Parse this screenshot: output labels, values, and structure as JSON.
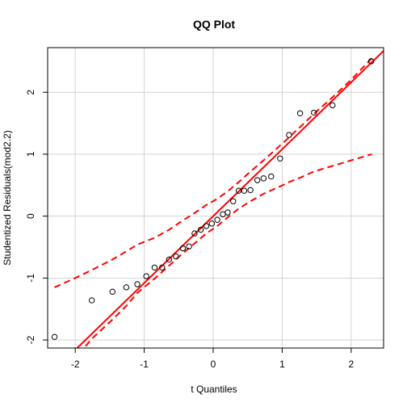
{
  "chart_data": {
    "type": "scatter",
    "title": "QQ Plot",
    "xlabel": "t Quantiles",
    "ylabel": "Studentized Residuals(mod2.2)",
    "xlim": [
      -2.4,
      2.47
    ],
    "ylim": [
      -2.13,
      2.72
    ],
    "xticks": [
      -2,
      -1,
      0,
      1,
      2
    ],
    "yticks": [
      -2,
      -1,
      0,
      1,
      2
    ],
    "grid": true,
    "points": [
      {
        "x": -2.3,
        "y": -1.95
      },
      {
        "x": -1.76,
        "y": -1.36
      },
      {
        "x": -1.46,
        "y": -1.22
      },
      {
        "x": -1.26,
        "y": -1.15
      },
      {
        "x": -1.1,
        "y": -1.1
      },
      {
        "x": -0.97,
        "y": -0.97
      },
      {
        "x": -0.85,
        "y": -0.83
      },
      {
        "x": -0.74,
        "y": -0.83
      },
      {
        "x": -0.64,
        "y": -0.7
      },
      {
        "x": -0.54,
        "y": -0.65
      },
      {
        "x": -0.44,
        "y": -0.52
      },
      {
        "x": -0.35,
        "y": -0.49
      },
      {
        "x": -0.27,
        "y": -0.28
      },
      {
        "x": -0.18,
        "y": -0.22
      },
      {
        "x": -0.1,
        "y": -0.16
      },
      {
        "x": -0.02,
        "y": -0.12
      },
      {
        "x": 0.06,
        "y": -0.06
      },
      {
        "x": 0.14,
        "y": 0.03
      },
      {
        "x": 0.21,
        "y": 0.06
      },
      {
        "x": 0.29,
        "y": 0.24
      },
      {
        "x": 0.37,
        "y": 0.41
      },
      {
        "x": 0.45,
        "y": 0.41
      },
      {
        "x": 0.54,
        "y": 0.42
      },
      {
        "x": 0.64,
        "y": 0.58
      },
      {
        "x": 0.73,
        "y": 0.61
      },
      {
        "x": 0.84,
        "y": 0.64
      },
      {
        "x": 0.97,
        "y": 0.93
      },
      {
        "x": 1.1,
        "y": 1.31
      },
      {
        "x": 1.26,
        "y": 1.66
      },
      {
        "x": 1.46,
        "y": 1.67
      },
      {
        "x": 1.73,
        "y": 1.79
      },
      {
        "x": 2.29,
        "y": 2.5
      }
    ],
    "reference_line": {
      "intercept": 0.0,
      "slope": 1.08
    },
    "envelope": {
      "x": [
        -2.3,
        -2.0,
        -1.76,
        -1.46,
        -1.26,
        -1.1,
        -0.85,
        -0.64,
        -0.44,
        -0.27,
        -0.1,
        0.06,
        0.21,
        0.37,
        0.54,
        0.73,
        0.97,
        1.1,
        1.26,
        1.46,
        1.76,
        2.0,
        2.3
      ],
      "upper": [
        -1.15,
        -1.0,
        -0.87,
        -0.7,
        -0.57,
        -0.46,
        -0.35,
        -0.22,
        -0.07,
        0.05,
        0.18,
        0.28,
        0.4,
        0.55,
        0.72,
        0.9,
        1.14,
        1.27,
        1.44,
        1.65,
        1.95,
        2.2,
        2.55
      ],
      "lower": [
        -2.55,
        -2.3,
        -1.98,
        -1.67,
        -1.45,
        -1.24,
        -1.01,
        -0.8,
        -0.6,
        -0.44,
        -0.28,
        -0.16,
        -0.02,
        0.12,
        0.24,
        0.36,
        0.48,
        0.55,
        0.62,
        0.72,
        0.82,
        0.9,
        1.0
      ]
    },
    "colors": {
      "line": "#ff0000",
      "envelope": "#ff0000",
      "points": "#000000",
      "grid": "#d3d3d3"
    }
  }
}
